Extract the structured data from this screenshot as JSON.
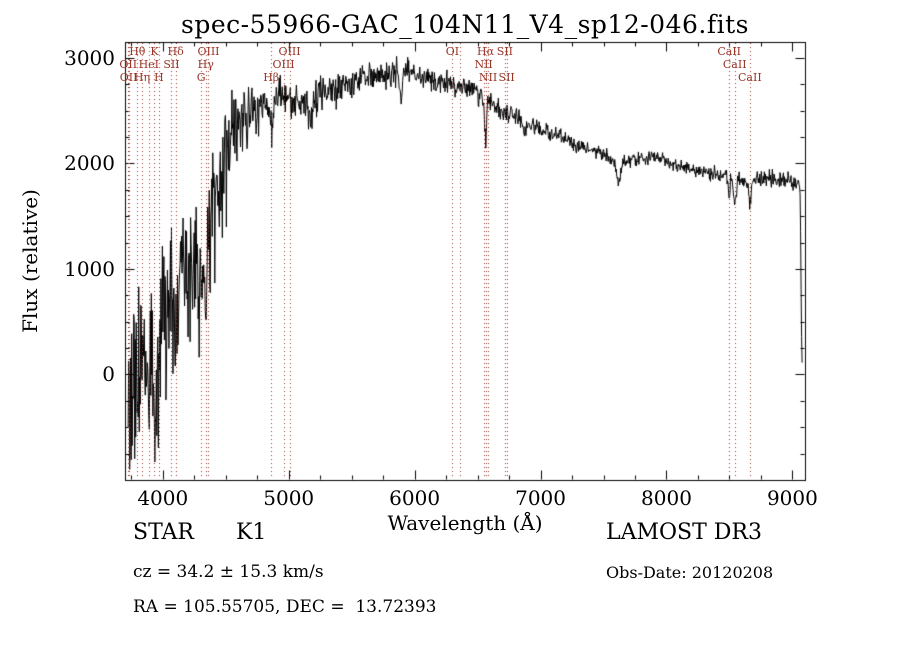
{
  "chart_data": {
    "type": "line",
    "title": "spec-55966-GAC_104N11_V4_sp12-046.fits",
    "xlabel": "Wavelength (Å)",
    "ylabel": "Flux (relative)",
    "xlim": [
      3700,
      9100
    ],
    "ylim": [
      -1000,
      3150
    ],
    "x_ticks": [
      4000,
      5000,
      6000,
      7000,
      8000,
      9000
    ],
    "y_ticks": [
      0,
      1000,
      2000,
      3000
    ],
    "x_minor_step": 250,
    "y_minor_step": 250,
    "grid": false,
    "line_color": "#000000",
    "spectral_line_color": "#993527",
    "sample_step_angstrom": 4,
    "noise_seed": 8,
    "spectral_lines": [
      {
        "wavelength": 3726,
        "label": "OII",
        "row": 2
      },
      {
        "wavelength": 3729,
        "label": "OII",
        "row": 3
      },
      {
        "wavelength": 3798,
        "label": "Hθ",
        "row": 1
      },
      {
        "wavelength": 3835,
        "label": "Hη",
        "row": 3
      },
      {
        "wavelength": 3889,
        "label": "HeI",
        "row": 2
      },
      {
        "wavelength": 3934,
        "label": "K",
        "row": 1
      },
      {
        "wavelength": 3969,
        "label": "H",
        "row": 3
      },
      {
        "wavelength": 4069,
        "label": "SII",
        "row": 2
      },
      {
        "wavelength": 4102,
        "label": "Hδ",
        "row": 1
      },
      {
        "wavelength": 4305,
        "label": "G",
        "row": 3
      },
      {
        "wavelength": 4341,
        "label": "Hγ",
        "row": 2
      },
      {
        "wavelength": 4363,
        "label": "OIII",
        "row": 1
      },
      {
        "wavelength": 4861,
        "label": "Hβ",
        "row": 3
      },
      {
        "wavelength": 4959,
        "label": "OIII",
        "row": 2
      },
      {
        "wavelength": 5007,
        "label": "OIII",
        "row": 1
      },
      {
        "wavelength": 6300,
        "label": "OI",
        "row": 1
      },
      {
        "wavelength": 6363,
        "label": "",
        "row": 2
      },
      {
        "wavelength": 6548,
        "label": "NII",
        "row": 2
      },
      {
        "wavelength": 6563,
        "label": "Hα",
        "row": 1
      },
      {
        "wavelength": 6583,
        "label": "NII",
        "row": 3
      },
      {
        "wavelength": 6717,
        "label": "SII",
        "row": 1
      },
      {
        "wavelength": 6731,
        "label": "SII",
        "row": 3
      },
      {
        "wavelength": 8498,
        "label": "CaII",
        "row": 1
      },
      {
        "wavelength": 8542,
        "label": "CaII",
        "row": 2
      },
      {
        "wavelength": 8662,
        "label": "CaII",
        "row": 3
      }
    ],
    "continuum": [
      [
        3725,
        -100
      ],
      [
        3800,
        0
      ],
      [
        3850,
        150
      ],
      [
        3900,
        250
      ],
      [
        3950,
        300
      ],
      [
        4000,
        550
      ],
      [
        4050,
        700
      ],
      [
        4100,
        700
      ],
      [
        4150,
        900
      ],
      [
        4200,
        1000
      ],
      [
        4250,
        1050
      ],
      [
        4300,
        1100
      ],
      [
        4360,
        1250
      ],
      [
        4420,
        1600
      ],
      [
        4480,
        1950
      ],
      [
        4540,
        2150
      ],
      [
        4600,
        2300
      ],
      [
        4700,
        2480
      ],
      [
        4800,
        2570
      ],
      [
        4900,
        2620
      ],
      [
        5000,
        2600
      ],
      [
        5100,
        2570
      ],
      [
        5200,
        2630
      ],
      [
        5300,
        2680
      ],
      [
        5400,
        2700
      ],
      [
        5500,
        2760
      ],
      [
        5600,
        2800
      ],
      [
        5700,
        2820
      ],
      [
        5800,
        2850
      ],
      [
        5900,
        2880
      ],
      [
        6000,
        2840
      ],
      [
        6100,
        2800
      ],
      [
        6200,
        2780
      ],
      [
        6300,
        2740
      ],
      [
        6400,
        2710
      ],
      [
        6500,
        2670
      ],
      [
        6600,
        2600
      ],
      [
        6700,
        2500
      ],
      [
        6800,
        2440
      ],
      [
        6900,
        2380
      ],
      [
        7000,
        2330
      ],
      [
        7100,
        2270
      ],
      [
        7200,
        2220
      ],
      [
        7300,
        2170
      ],
      [
        7400,
        2120
      ],
      [
        7500,
        2090
      ],
      [
        7600,
        2010
      ],
      [
        7700,
        2030
      ],
      [
        7800,
        2060
      ],
      [
        7900,
        2070
      ],
      [
        8000,
        2020
      ],
      [
        8100,
        1970
      ],
      [
        8200,
        1940
      ],
      [
        8300,
        1915
      ],
      [
        8400,
        1895
      ],
      [
        8500,
        1875
      ],
      [
        8600,
        1855
      ],
      [
        8700,
        1865
      ],
      [
        8800,
        1845
      ],
      [
        8900,
        1835
      ],
      [
        9000,
        1820
      ],
      [
        9050,
        1795
      ],
      [
        9062,
        1760
      ],
      [
        9072,
        400
      ],
      [
        9078,
        40
      ]
    ],
    "noise_sigma": [
      [
        3725,
        480
      ],
      [
        3800,
        470
      ],
      [
        3900,
        440
      ],
      [
        4000,
        380
      ],
      [
        4100,
        350
      ],
      [
        4200,
        320
      ],
      [
        4300,
        300
      ],
      [
        4400,
        350
      ],
      [
        4500,
        320
      ],
      [
        4600,
        220
      ],
      [
        4700,
        150
      ],
      [
        4800,
        110
      ],
      [
        4900,
        100
      ],
      [
        5000,
        95
      ],
      [
        5200,
        85
      ],
      [
        5500,
        70
      ],
      [
        5800,
        65
      ],
      [
        6000,
        60
      ],
      [
        6300,
        55
      ],
      [
        6500,
        55
      ],
      [
        6700,
        50
      ],
      [
        7000,
        40
      ],
      [
        7300,
        35
      ],
      [
        7600,
        35
      ],
      [
        8000,
        32
      ],
      [
        8300,
        33
      ],
      [
        8600,
        36
      ],
      [
        9000,
        42
      ],
      [
        9078,
        25
      ]
    ],
    "absorption_features": [
      {
        "wavelength": 3934,
        "depth": 500,
        "width": 12
      },
      {
        "wavelength": 3969,
        "depth": 480,
        "width": 12
      },
      {
        "wavelength": 4101,
        "depth": 300,
        "width": 8
      },
      {
        "wavelength": 4305,
        "depth": 350,
        "width": 15
      },
      {
        "wavelength": 4340,
        "depth": 400,
        "width": 8
      },
      {
        "wavelength": 4861,
        "depth": 280,
        "width": 8
      },
      {
        "wavelength": 5175,
        "depth": 220,
        "width": 18
      },
      {
        "wavelength": 5893,
        "depth": 230,
        "width": 10
      },
      {
        "wavelength": 6563,
        "depth": 450,
        "width": 7
      },
      {
        "wavelength": 6870,
        "depth": 140,
        "width": 12
      },
      {
        "wavelength": 7620,
        "depth": 170,
        "width": 18
      },
      {
        "wavelength": 8498,
        "depth": 160,
        "width": 8
      },
      {
        "wavelength": 8542,
        "depth": 260,
        "width": 10
      },
      {
        "wavelength": 8662,
        "depth": 250,
        "width": 10
      }
    ]
  },
  "annotations": {
    "object_class": "STAR      K1",
    "cz": "cz = 34.2 ± 15.3 km/s",
    "ra_dec": "RA = 105.55705, DEC =  13.72393",
    "survey": "LAMOST DR3",
    "obs_date": "Obs-Date: 20120208"
  }
}
